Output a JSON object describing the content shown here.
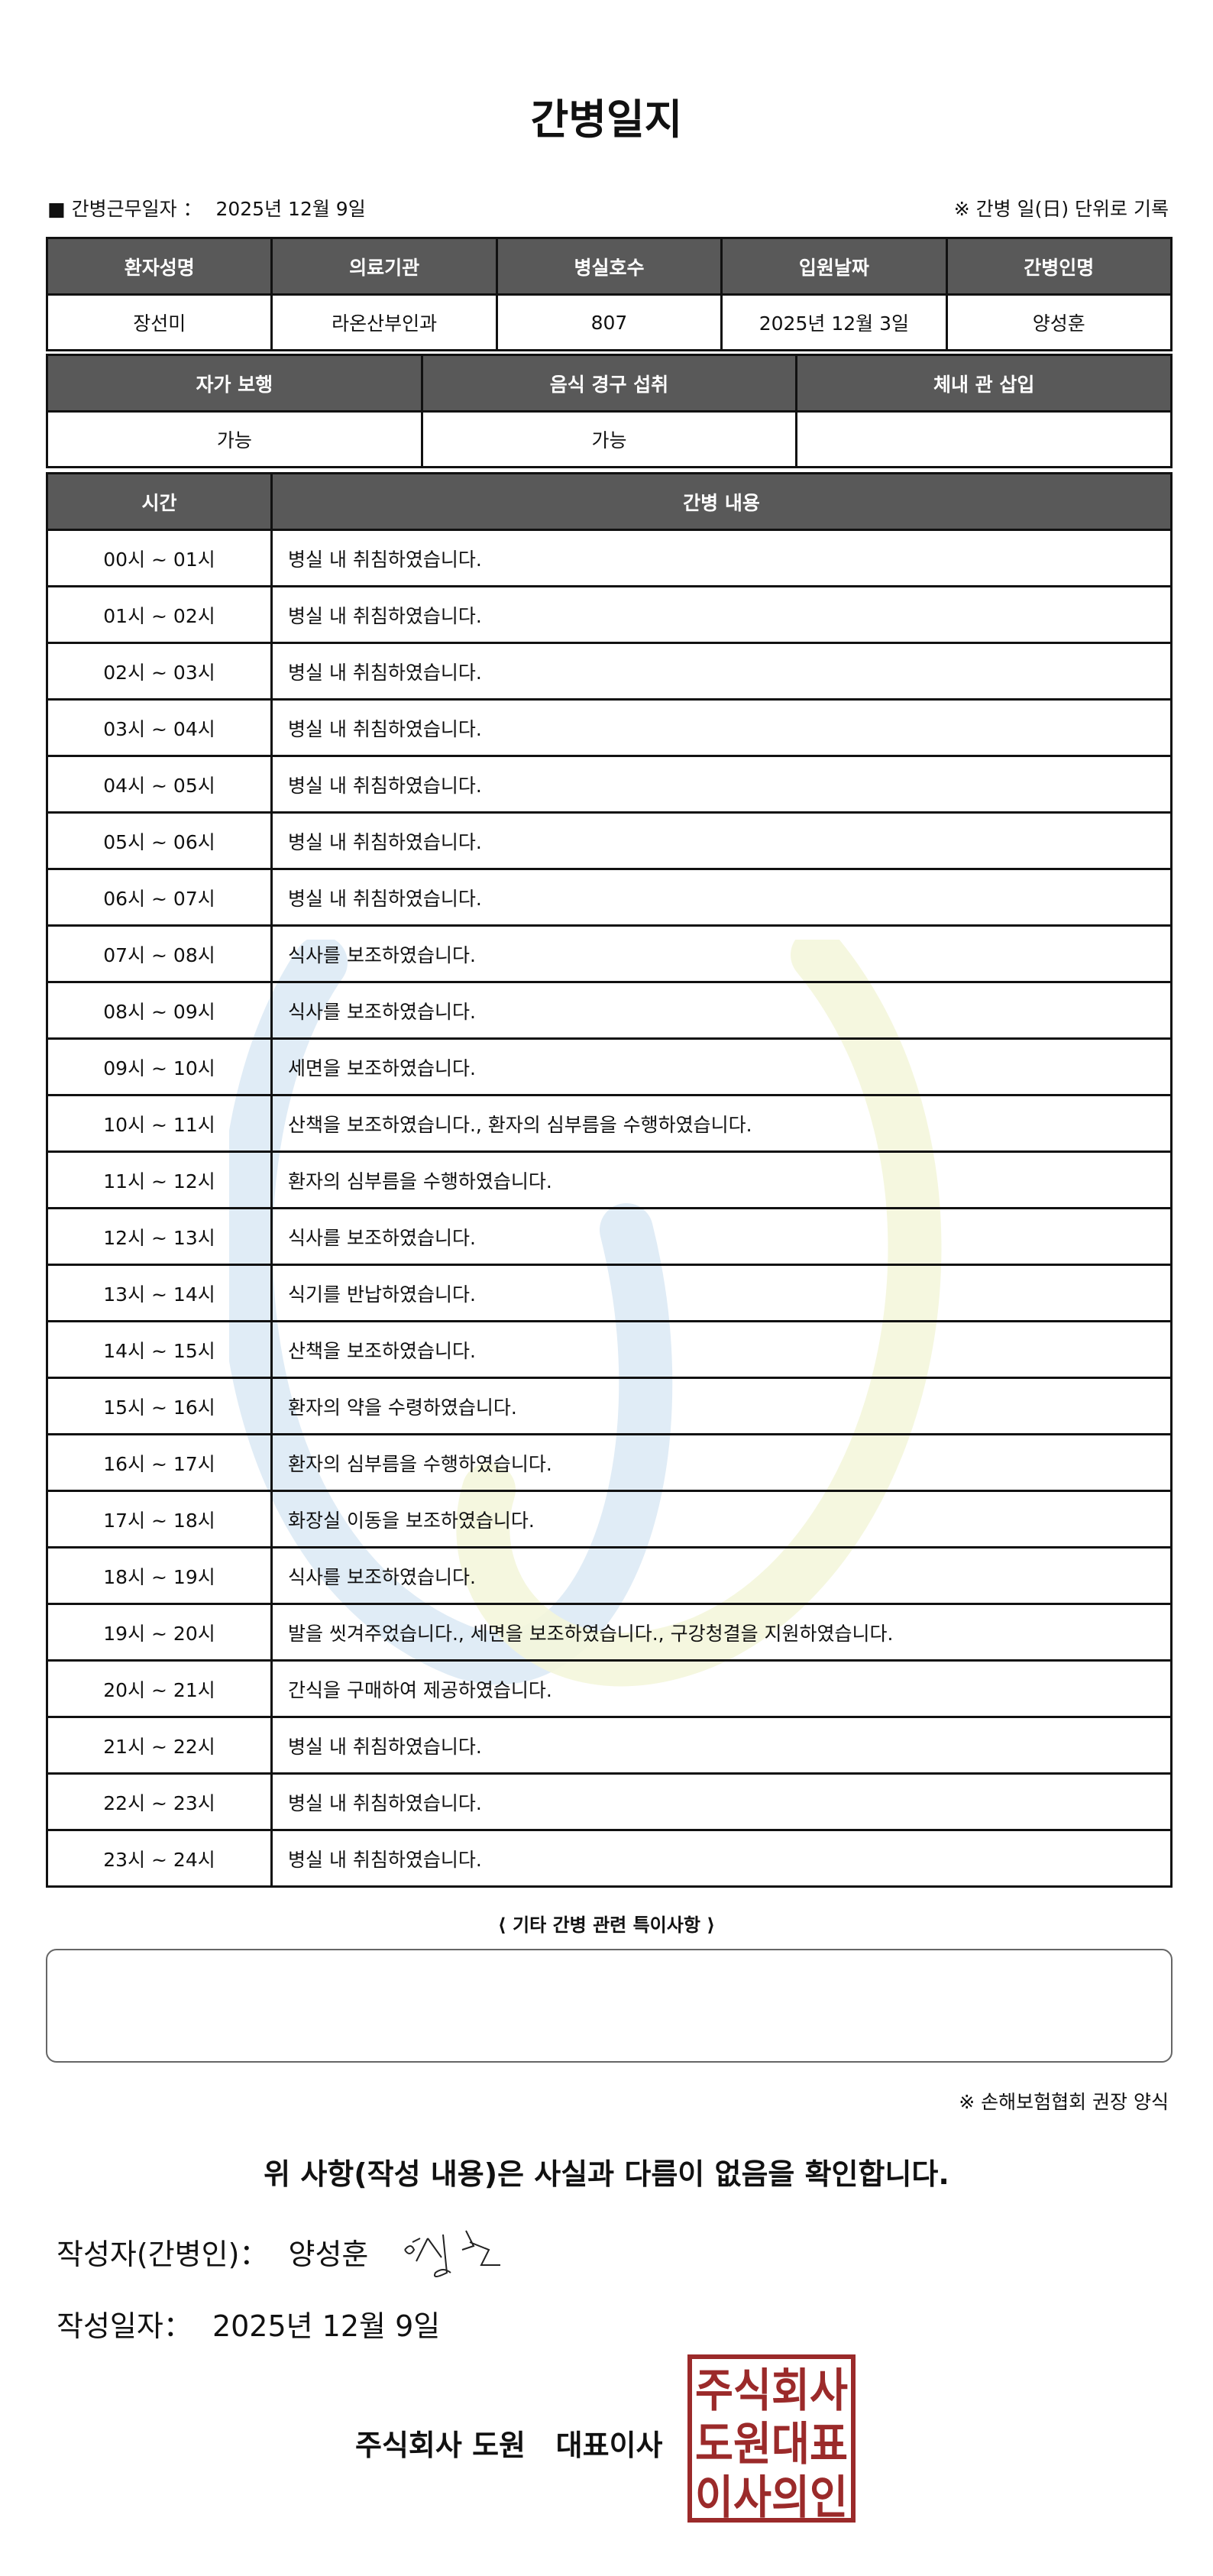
{
  "title": "간병일지",
  "info": {
    "work_date_label": "■ 간병근무일자 ：",
    "work_date": "2025년 12월 9일",
    "note": "※ 간병 일(日) 단위로 기록"
  },
  "patient_table": {
    "headers": [
      "환자성명",
      "의료기관",
      "병실호수",
      "입원날짜",
      "간병인명"
    ],
    "values": [
      "장선미",
      "라온산부인과",
      "807",
      "2025년 12월 3일",
      "양성훈"
    ]
  },
  "status_table": {
    "headers": [
      "자가 보행",
      "음식 경구 섭취",
      "체내 관 삽입"
    ],
    "values": [
      "가능",
      "가능",
      ""
    ]
  },
  "log_table": {
    "headers": [
      "시간",
      "간병 내용"
    ],
    "rows": [
      {
        "time": "00시 ~ 01시",
        "content": "병실 내 취침하였습니다."
      },
      {
        "time": "01시 ~ 02시",
        "content": "병실 내 취침하였습니다."
      },
      {
        "time": "02시 ~ 03시",
        "content": "병실 내 취침하였습니다."
      },
      {
        "time": "03시 ~ 04시",
        "content": "병실 내 취침하였습니다."
      },
      {
        "time": "04시 ~ 05시",
        "content": "병실 내 취침하였습니다."
      },
      {
        "time": "05시 ~ 06시",
        "content": "병실 내 취침하였습니다."
      },
      {
        "time": "06시 ~ 07시",
        "content": "병실 내 취침하였습니다."
      },
      {
        "time": "07시 ~ 08시",
        "content": "식사를 보조하였습니다."
      },
      {
        "time": "08시 ~ 09시",
        "content": "식사를 보조하였습니다."
      },
      {
        "time": "09시 ~ 10시",
        "content": "세면을 보조하였습니다."
      },
      {
        "time": "10시 ~ 11시",
        "content": "산책을 보조하였습니다., 환자의 심부름을 수행하였습니다."
      },
      {
        "time": "11시 ~ 12시",
        "content": "환자의 심부름을 수행하였습니다."
      },
      {
        "time": "12시 ~ 13시",
        "content": "식사를 보조하였습니다."
      },
      {
        "time": "13시 ~ 14시",
        "content": "식기를 반납하였습니다."
      },
      {
        "time": "14시 ~ 15시",
        "content": "산책을 보조하였습니다."
      },
      {
        "time": "15시 ~ 16시",
        "content": "환자의 약을 수령하였습니다."
      },
      {
        "time": "16시 ~ 17시",
        "content": "환자의 심부름을 수행하였습니다."
      },
      {
        "time": "17시 ~ 18시",
        "content": "화장실 이동을 보조하였습니다."
      },
      {
        "time": "18시 ~ 19시",
        "content": "식사를 보조하였습니다."
      },
      {
        "time": "19시 ~ 20시",
        "content": "발을 씻겨주었습니다., 세면을 보조하였습니다., 구강청결을 지원하였습니다."
      },
      {
        "time": "20시 ~ 21시",
        "content": "간식을 구매하여 제공하였습니다."
      },
      {
        "time": "21시 ~ 22시",
        "content": "병실 내 취침하였습니다."
      },
      {
        "time": "22시 ~ 23시",
        "content": "병실 내 취침하였습니다."
      },
      {
        "time": "23시 ~ 24시",
        "content": "병실 내 취침하였습니다."
      }
    ]
  },
  "notes": {
    "title": "⟨ 기타 간병 관련 특이사항 ⟩",
    "content": ""
  },
  "recommend": "※ 손해보험협회 권장 양식",
  "confirm": "위 사항(작성 내용)은 사실과 다름이 없음을 확인합니다.",
  "author": {
    "label": "작성자(간병인)：",
    "name": "양성훈"
  },
  "written_date": {
    "label": "작성일자：",
    "value": "2025년 12월 9일"
  },
  "company": "주식회사 도원   대표이사",
  "stamp": {
    "text": [
      "주식회사",
      "도원대표",
      "이사의인"
    ],
    "color": "#9b2a2a"
  },
  "colors": {
    "header_bg": "#595959",
    "watermark_blue": "#dbe9f5",
    "watermark_yellow": "#f4f6dc"
  }
}
